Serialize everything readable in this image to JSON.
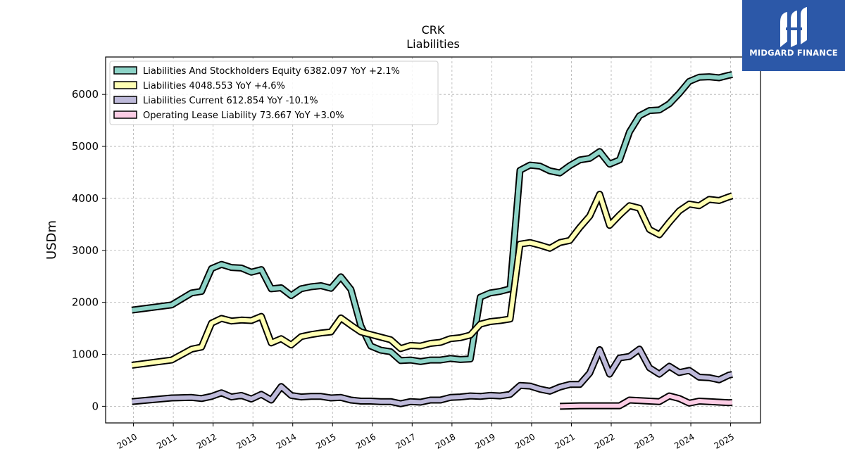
{
  "title": "CRK",
  "subtitle": "Liabilities",
  "brand": {
    "name": "MIDGARD FINANCE",
    "color": "#2c58a8"
  },
  "chart_data": {
    "type": "line",
    "ylabel": "USDm",
    "xlabel": "",
    "ylim": [
      -320,
      6720
    ],
    "xlim": [
      2009.3,
      2025.75
    ],
    "yticks": [
      0,
      1000,
      2000,
      3000,
      4000,
      5000,
      6000
    ],
    "ytick_labels": [
      "0",
      "1000",
      "2000",
      "3000",
      "4000",
      "5000",
      "6000"
    ],
    "xticks": [
      2010,
      2011,
      2012,
      2013,
      2014,
      2015,
      2016,
      2017,
      2018,
      2019,
      2020,
      2021,
      2022,
      2023,
      2024,
      2025
    ],
    "xtick_labels": [
      "2010",
      "2011",
      "2012",
      "2013",
      "2014",
      "2015",
      "2016",
      "2017",
      "2018",
      "2019",
      "2020",
      "2021",
      "2022",
      "2023",
      "2024",
      "2025"
    ],
    "grid": true,
    "legend_position": "top-left",
    "series": [
      {
        "name": "Liabilities And Stockholders Equity",
        "legend": "Liabilities And Stockholders Equity  6382.097 YoY +2.1%",
        "color": "#8dd3c7",
        "x": [
          2009.96,
          2010.96,
          2011.46,
          2011.71,
          2011.96,
          2012.21,
          2012.46,
          2012.71,
          2012.96,
          2013.21,
          2013.46,
          2013.71,
          2013.96,
          2014.21,
          2014.46,
          2014.71,
          2014.96,
          2015.21,
          2015.46,
          2015.71,
          2015.96,
          2016.21,
          2016.46,
          2016.71,
          2016.96,
          2017.21,
          2017.46,
          2017.71,
          2017.96,
          2018.21,
          2018.46,
          2018.71,
          2018.96,
          2019.21,
          2019.46,
          2019.71,
          2019.96,
          2020.21,
          2020.46,
          2020.71,
          2020.96,
          2021.21,
          2021.46,
          2021.71,
          2021.96,
          2022.21,
          2022.46,
          2022.71,
          2022.96,
          2023.21,
          2023.46,
          2023.71,
          2023.96,
          2024.21,
          2024.46,
          2024.71,
          2024.96,
          2025.04
        ],
        "y": [
          1850,
          1950,
          2180,
          2210,
          2650,
          2730,
          2670,
          2660,
          2580,
          2630,
          2260,
          2280,
          2130,
          2260,
          2300,
          2320,
          2270,
          2490,
          2250,
          1550,
          1160,
          1080,
          1050,
          880,
          890,
          860,
          890,
          890,
          920,
          900,
          910,
          2100,
          2180,
          2210,
          2260,
          4540,
          4640,
          4620,
          4530,
          4490,
          4630,
          4740,
          4770,
          4900,
          4660,
          4740,
          5280,
          5590,
          5690,
          5700,
          5820,
          6020,
          6250,
          6330,
          6340,
          6320,
          6370,
          6382.097
        ]
      },
      {
        "name": "Liabilities",
        "legend": "Liabilities  4048.553 YoY +4.6%",
        "color": "#ffffb3",
        "x": [
          2009.96,
          2010.96,
          2011.46,
          2011.71,
          2011.96,
          2012.21,
          2012.46,
          2012.71,
          2012.96,
          2013.21,
          2013.46,
          2013.71,
          2013.96,
          2014.21,
          2014.46,
          2014.71,
          2014.96,
          2015.21,
          2015.46,
          2015.71,
          2015.96,
          2016.21,
          2016.46,
          2016.71,
          2016.96,
          2017.21,
          2017.46,
          2017.71,
          2017.96,
          2018.21,
          2018.46,
          2018.71,
          2018.96,
          2019.21,
          2019.46,
          2019.71,
          2019.96,
          2020.21,
          2020.46,
          2020.71,
          2020.96,
          2021.21,
          2021.46,
          2021.71,
          2021.96,
          2022.21,
          2022.46,
          2022.71,
          2022.96,
          2023.21,
          2023.46,
          2023.71,
          2023.96,
          2024.21,
          2024.46,
          2024.71,
          2024.96,
          2025.04
        ],
        "y": [
          790,
          890,
          1100,
          1140,
          1600,
          1690,
          1640,
          1660,
          1650,
          1730,
          1220,
          1300,
          1180,
          1340,
          1380,
          1410,
          1430,
          1700,
          1560,
          1430,
          1380,
          1330,
          1280,
          1110,
          1170,
          1160,
          1210,
          1230,
          1300,
          1320,
          1370,
          1580,
          1630,
          1650,
          1680,
          3120,
          3150,
          3100,
          3040,
          3150,
          3190,
          3440,
          3660,
          4080,
          3480,
          3680,
          3860,
          3810,
          3400,
          3300,
          3540,
          3760,
          3890,
          3860,
          3980,
          3960,
          4030,
          4048.553
        ]
      },
      {
        "name": "Liabilities Current",
        "legend": "Liabilities Current  612.854 YoY -10.1%",
        "color": "#bebada",
        "x": [
          2009.96,
          2010.96,
          2011.46,
          2011.71,
          2011.96,
          2012.21,
          2012.46,
          2012.71,
          2012.96,
          2013.21,
          2013.46,
          2013.71,
          2013.96,
          2014.21,
          2014.46,
          2014.71,
          2014.96,
          2015.21,
          2015.46,
          2015.71,
          2015.96,
          2016.21,
          2016.46,
          2016.71,
          2016.96,
          2017.21,
          2017.46,
          2017.71,
          2017.96,
          2018.21,
          2018.46,
          2018.71,
          2018.96,
          2019.21,
          2019.46,
          2019.71,
          2019.96,
          2020.21,
          2020.46,
          2020.71,
          2020.96,
          2021.21,
          2021.46,
          2021.71,
          2021.96,
          2022.21,
          2022.46,
          2022.71,
          2022.96,
          2023.21,
          2023.46,
          2023.71,
          2023.96,
          2024.21,
          2024.46,
          2024.71,
          2024.96,
          2025.04
        ],
        "y": [
          90,
          160,
          170,
          150,
          190,
          260,
          180,
          210,
          140,
          230,
          120,
          380,
          210,
          180,
          190,
          190,
          160,
          170,
          120,
          100,
          100,
          90,
          90,
          50,
          90,
          80,
          120,
          120,
          170,
          180,
          200,
          190,
          210,
          200,
          230,
          400,
          390,
          330,
          290,
          370,
          420,
          420,
          640,
          1090,
          620,
          930,
          960,
          1100,
          740,
          620,
          770,
          650,
          690,
          560,
          550,
          510,
          600,
          612.854
        ]
      },
      {
        "name": "Operating Lease Liability",
        "legend": "Operating Lease Liability  73.667 YoY +3.0%",
        "color": "#fccde5",
        "x": [
          2020.71,
          2020.96,
          2021.21,
          2021.46,
          2021.71,
          2021.96,
          2022.21,
          2022.46,
          2022.71,
          2022.96,
          2023.21,
          2023.46,
          2023.71,
          2023.96,
          2024.21,
          2024.46,
          2024.71,
          2024.96,
          2025.04
        ],
        "y": [
          0,
          5,
          10,
          10,
          10,
          10,
          10,
          120,
          110,
          100,
          90,
          200,
          150,
          60,
          100,
          90,
          80,
          70,
          73.667
        ]
      }
    ]
  }
}
